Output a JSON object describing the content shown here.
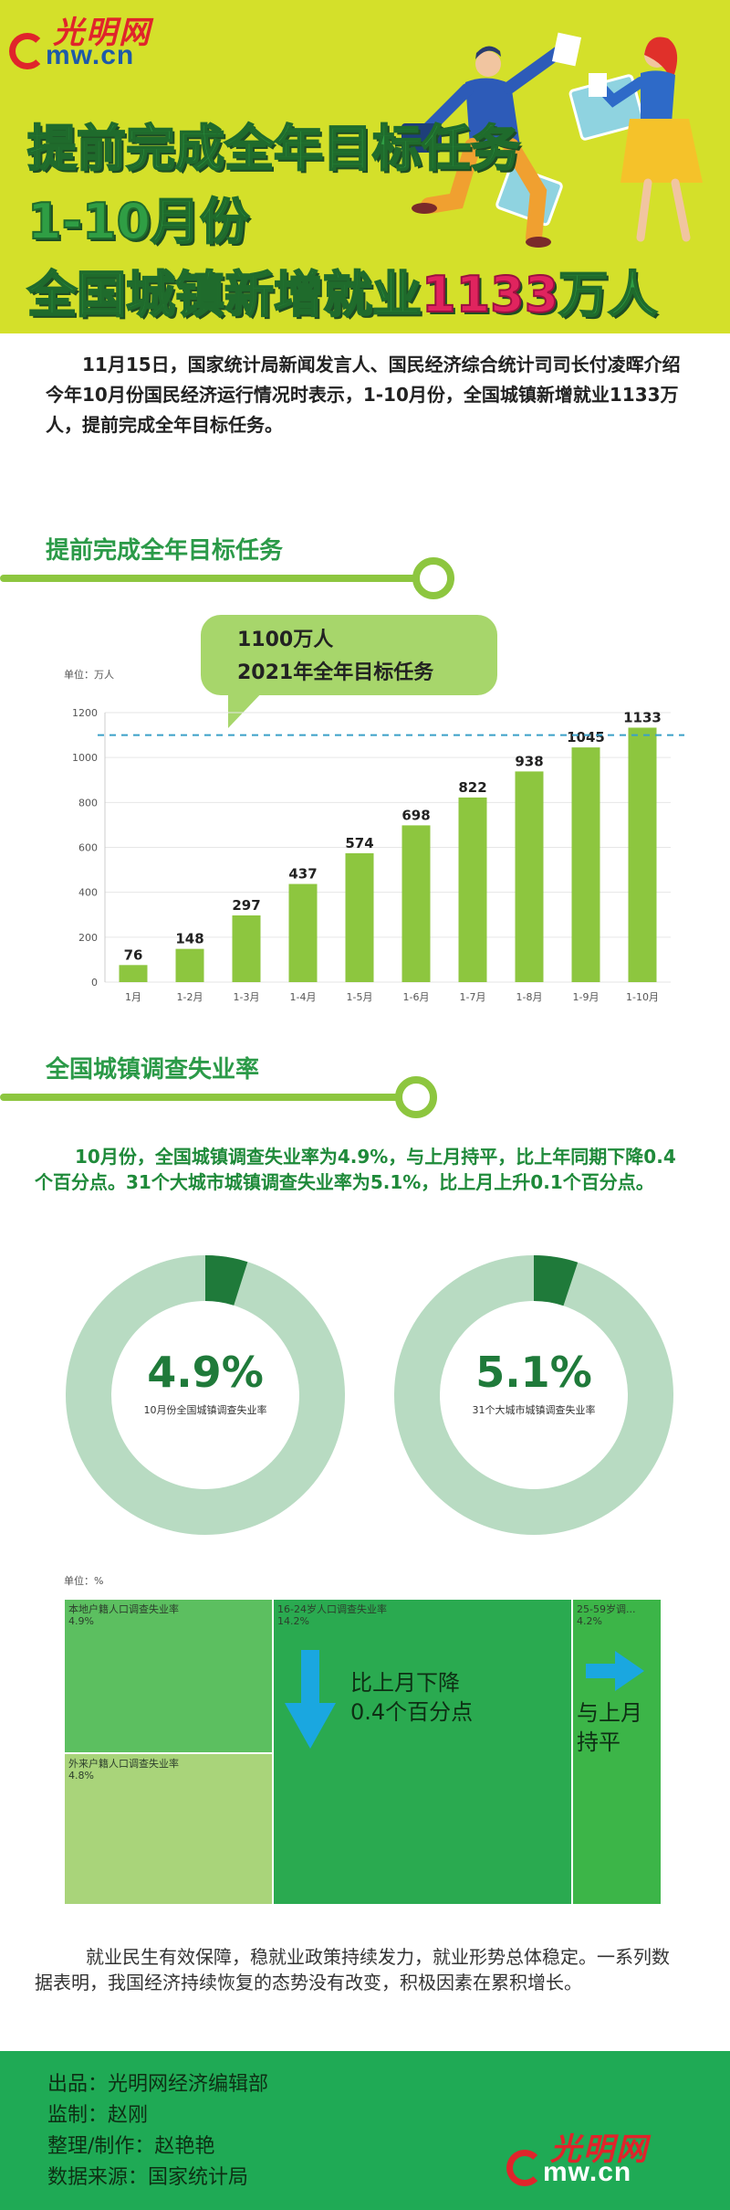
{
  "header": {
    "logo_cn": "光明网",
    "logo_en": "mw.cn",
    "title_line1": "提前完成全年目标任务",
    "title_line2": "1-10月份",
    "title_line3_prefix": "全国城镇新增就业",
    "title_line3_number": "1133",
    "title_line3_suffix": "万人"
  },
  "intro": "11月15日，国家统计局新闻发言人、国民经济综合统计司司长付凌晖介绍今年10月份国民经济运行情况时表示，1-10月份，全国城镇新增就业1133万人，提前完成全年目标任务。",
  "section1": {
    "title": "提前完成全年目标任务",
    "bubble_line1": "1100万人",
    "bubble_line2": "2021年全年目标任务"
  },
  "chart_data": [
    {
      "type": "bar",
      "unit_label": "单位：万人",
      "categories": [
        "1月",
        "1-2月",
        "1-3月",
        "1-4月",
        "1-5月",
        "1-6月",
        "1-7月",
        "1-8月",
        "1-9月",
        "1-10月"
      ],
      "values": [
        76,
        148,
        297,
        437,
        574,
        698,
        822,
        938,
        1045,
        1133
      ],
      "ylim": [
        0,
        1200
      ],
      "yticks": [
        0,
        200,
        400,
        600,
        800,
        1000,
        1200
      ],
      "target_line": 1100,
      "color": "#8dc63f",
      "target_color": "#3aa0c8"
    },
    {
      "type": "pie",
      "title": "4.9%",
      "caption": "10月份全国城镇调查失业率",
      "value": 4.9,
      "color": "#1f7a3a",
      "rest_color": "#b8dbc2"
    },
    {
      "type": "pie",
      "title": "5.1%",
      "caption": "31个大城市城镇调查失业率",
      "value": 5.1,
      "color": "#1f7a3a",
      "rest_color": "#b8dbc2"
    },
    {
      "type": "treemap",
      "unit_label": "单位：%",
      "items": [
        {
          "name": "本地户籍人口调查失业率",
          "value": 4.9,
          "label": "4.9%",
          "color": "#5cbf60"
        },
        {
          "name": "外来户籍人口调查失业率",
          "value": 4.8,
          "label": "4.8%",
          "color": "#a9d47a"
        },
        {
          "name": "16-24岁人口调查失业率",
          "value": 14.2,
          "label": "14.2%",
          "color": "#2aaa50"
        },
        {
          "name": "25-59岁调...",
          "value": 4.2,
          "label": "4.2%",
          "color": "#3cb548"
        }
      ],
      "annotation_down": "比上月下降\n0.4个百分点",
      "annotation_flat": "与上月\n持平"
    }
  ],
  "section2": {
    "title": "全国城镇调查失业率",
    "text": "10月份，全国城镇调查失业率为4.9%，与上月持平，比上年同期下降0.4个百分点。31个大城市城镇调查失业率为5.1%，比上月上升0.1个百分点。"
  },
  "conclusion": "就业民生有效保障，稳就业政策持续发力，就业形势总体稳定。一系列数据表明，我国经济持续恢复的态势没有改变，积极因素在累积增长。",
  "footer": {
    "line1": "出品：光明网经济编辑部",
    "line2": "监制：赵刚",
    "line3": "整理/制作：赵艳艳",
    "line4": "数据来源：国家统计局"
  }
}
